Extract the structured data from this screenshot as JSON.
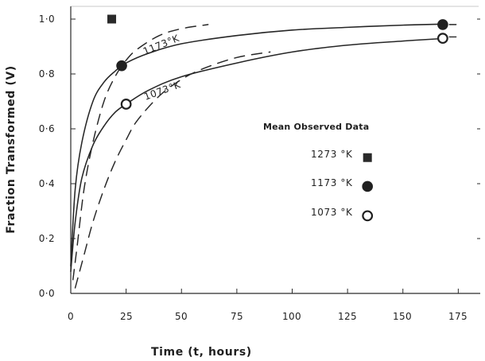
{
  "chart_data": {
    "type": "line",
    "title": "",
    "xlabel": "Time    (t, hours)",
    "ylabel": "Fraction Transformed  (V)",
    "xlim": [
      0,
      185
    ],
    "ylim": [
      0.0,
      1.05
    ],
    "x_ticks": [
      "0",
      "25",
      "50",
      "75",
      "100",
      "125",
      "150",
      "175"
    ],
    "y_ticks": [
      "0·0",
      "0·2",
      "0·4",
      "0·6",
      "0·8",
      "1·0"
    ],
    "grid": false,
    "legend_position": "center-right",
    "legend": {
      "title": "Mean Observed Data",
      "entries": [
        {
          "marker": "square-filled",
          "label": "1273 °K"
        },
        {
          "marker": "circle-filled",
          "label": "1173 °K"
        },
        {
          "marker": "circle-open",
          "label": "1073 °K"
        }
      ]
    },
    "curve_labels": [
      {
        "text": "1173°K",
        "x": 30,
        "y": 0.91
      },
      {
        "text": "1073°K",
        "x": 58,
        "y": 0.8
      }
    ],
    "series": [
      {
        "name": "1273 °K",
        "style": "marker-only",
        "marker": "square-filled",
        "points": [
          {
            "x": 18.5,
            "y": 1.0
          }
        ]
      },
      {
        "name": "1173 °K",
        "style": "marker-only",
        "marker": "circle-filled",
        "points": [
          {
            "x": 23,
            "y": 0.83
          },
          {
            "x": 168,
            "y": 0.98
          }
        ]
      },
      {
        "name": "1073 °K",
        "style": "marker-only",
        "marker": "circle-open",
        "points": [
          {
            "x": 25,
            "y": 0.69
          },
          {
            "x": 168,
            "y": 0.93
          }
        ]
      },
      {
        "style": "solid",
        "points": [
          {
            "x": 0,
            "y": 0.1
          },
          {
            "x": 2,
            "y": 0.38
          },
          {
            "x": 5,
            "y": 0.55
          },
          {
            "x": 10,
            "y": 0.7
          },
          {
            "x": 15,
            "y": 0.77
          },
          {
            "x": 20,
            "y": 0.81
          },
          {
            "x": 25,
            "y": 0.84
          },
          {
            "x": 35,
            "y": 0.875
          },
          {
            "x": 50,
            "y": 0.91
          },
          {
            "x": 75,
            "y": 0.94
          },
          {
            "x": 100,
            "y": 0.96
          },
          {
            "x": 125,
            "y": 0.97
          },
          {
            "x": 150,
            "y": 0.978
          },
          {
            "x": 170,
            "y": 0.982
          }
        ]
      },
      {
        "style": "solid",
        "points": [
          {
            "x": 0,
            "y": 0.08
          },
          {
            "x": 2,
            "y": 0.26
          },
          {
            "x": 5,
            "y": 0.42
          },
          {
            "x": 10,
            "y": 0.54
          },
          {
            "x": 15,
            "y": 0.61
          },
          {
            "x": 20,
            "y": 0.66
          },
          {
            "x": 25,
            "y": 0.69
          },
          {
            "x": 35,
            "y": 0.74
          },
          {
            "x": 50,
            "y": 0.79
          },
          {
            "x": 75,
            "y": 0.84
          },
          {
            "x": 100,
            "y": 0.88
          },
          {
            "x": 125,
            "y": 0.905
          },
          {
            "x": 150,
            "y": 0.92
          },
          {
            "x": 170,
            "y": 0.93
          }
        ]
      },
      {
        "style": "dashed",
        "points": [
          {
            "x": 1,
            "y": 0.05
          },
          {
            "x": 3,
            "y": 0.18
          },
          {
            "x": 6,
            "y": 0.38
          },
          {
            "x": 10,
            "y": 0.55
          },
          {
            "x": 15,
            "y": 0.7
          },
          {
            "x": 20,
            "y": 0.79
          },
          {
            "x": 25,
            "y": 0.85
          },
          {
            "x": 30,
            "y": 0.89
          },
          {
            "x": 40,
            "y": 0.94
          },
          {
            "x": 50,
            "y": 0.965
          },
          {
            "x": 62,
            "y": 0.98
          }
        ]
      },
      {
        "style": "dashed",
        "points": [
          {
            "x": 2,
            "y": 0.02
          },
          {
            "x": 6,
            "y": 0.14
          },
          {
            "x": 10,
            "y": 0.26
          },
          {
            "x": 15,
            "y": 0.38
          },
          {
            "x": 20,
            "y": 0.48
          },
          {
            "x": 25,
            "y": 0.56
          },
          {
            "x": 30,
            "y": 0.63
          },
          {
            "x": 40,
            "y": 0.72
          },
          {
            "x": 50,
            "y": 0.78
          },
          {
            "x": 60,
            "y": 0.82
          },
          {
            "x": 75,
            "y": 0.86
          },
          {
            "x": 90,
            "y": 0.88
          }
        ]
      },
      {
        "style": "dashed",
        "points": [
          {
            "x": 171,
            "y": 0.98
          },
          {
            "x": 174,
            "y": 0.98
          }
        ]
      },
      {
        "style": "dashed",
        "points": [
          {
            "x": 171,
            "y": 0.935
          },
          {
            "x": 174,
            "y": 0.935
          }
        ]
      }
    ]
  }
}
